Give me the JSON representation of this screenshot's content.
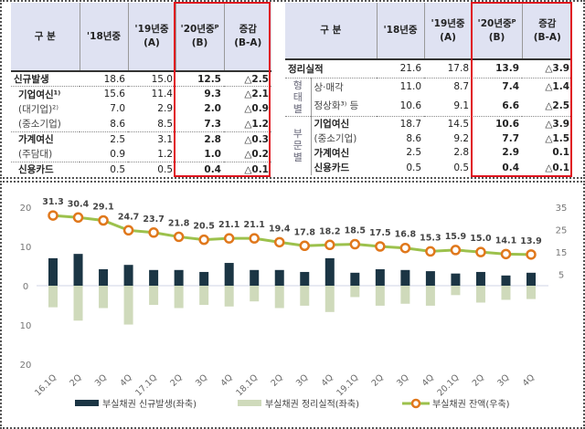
{
  "left_table": {
    "headers": [
      "구    분",
      "'18년중",
      "'19년중\n(A)",
      "'20년중ᴾ\n(B)",
      "증감\n(B-A)"
    ],
    "rows": [
      {
        "label": "신규발생",
        "bold": true,
        "values": [
          "18.6",
          "15.0",
          "12.5",
          "△2.5"
        ]
      },
      {
        "label": "기업여신¹⁾",
        "bold": true,
        "values": [
          "15.6",
          "11.4",
          "9.3",
          "△2.1"
        ]
      },
      {
        "label": "(대기업)²⁾",
        "bold": false,
        "values": [
          "7.0",
          "2.9",
          "2.0",
          "△0.9"
        ]
      },
      {
        "label": "(중소기업)",
        "bold": false,
        "values": [
          "8.6",
          "8.5",
          "7.3",
          "△1.2"
        ]
      },
      {
        "label": "가계여신",
        "bold": true,
        "values": [
          "2.5",
          "3.1",
          "2.8",
          "△0.3"
        ]
      },
      {
        "label": "(주담대)",
        "bold": false,
        "values": [
          "0.9",
          "1.2",
          "1.0",
          "△0.2"
        ]
      },
      {
        "label": "신용카드",
        "bold": true,
        "values": [
          "0.5",
          "0.5",
          "0.4",
          "△0.1"
        ]
      }
    ]
  },
  "right_table": {
    "headers": [
      "구    분",
      "'18년중",
      "'19년중\n(A)",
      "'20년중ᴾ\n(B)",
      "증감\n(B-A)"
    ],
    "group_labels": [
      "형\n태\n별",
      "부\n문\n별"
    ],
    "rows": [
      {
        "label": "정리실적",
        "bold": true,
        "values": [
          "21.6",
          "17.8",
          "13.9",
          "△3.9"
        ]
      },
      {
        "label": "상·매각",
        "bold": false,
        "values": [
          "11.0",
          "8.7",
          "7.4",
          "△1.4"
        ]
      },
      {
        "label": "정상화³⁾ 등",
        "bold": false,
        "values": [
          "10.6",
          "9.1",
          "6.6",
          "△2.5"
        ]
      },
      {
        "label": "기업여신",
        "bold": true,
        "values": [
          "18.7",
          "14.5",
          "10.6",
          "△3.9"
        ]
      },
      {
        "label": "(중소기업)",
        "bold": false,
        "values": [
          "8.6",
          "9.2",
          "7.7",
          "△1.5"
        ]
      },
      {
        "label": "가계여신",
        "bold": true,
        "values": [
          "2.5",
          "2.8",
          "2.9",
          "0.1"
        ]
      },
      {
        "label": "신용카드",
        "bold": true,
        "values": [
          "0.5",
          "0.5",
          "0.4",
          "△0.1"
        ]
      }
    ]
  },
  "chart_data": {
    "type": "bar+line",
    "categories": [
      "16.1Q",
      "2Q",
      "3Q",
      "4Q",
      "17.1Q",
      "2Q",
      "3Q",
      "4Q",
      "18.1Q",
      "2Q",
      "3Q",
      "4Q",
      "19.1Q",
      "2Q",
      "3Q",
      "4Q",
      "20.1Q",
      "2Q",
      "3Q",
      "4Q"
    ],
    "left_axis": {
      "ticks": [
        "20",
        "10",
        "0",
        "10",
        "20"
      ],
      "tick_values": [
        20,
        10,
        0,
        -10,
        -20
      ],
      "range": [
        -20,
        20
      ]
    },
    "right_axis": {
      "ticks": [
        "35",
        "25",
        "15",
        "5"
      ],
      "tick_values": [
        35,
        25,
        15,
        5
      ],
      "range": [
        0,
        35
      ]
    },
    "series": [
      {
        "name": "부실채권 신규발생(좌축)",
        "type": "bar",
        "axis": "left",
        "color": "#1b3544",
        "values": [
          7.0,
          8.1,
          4.2,
          5.3,
          4.0,
          4.0,
          3.5,
          5.8,
          4.0,
          4.0,
          3.5,
          7.0,
          3.3,
          4.2,
          4.0,
          3.7,
          3.1,
          3.5,
          2.6,
          3.3
        ]
      },
      {
        "name": "부실채권 정리실적(좌축)",
        "type": "bar",
        "axis": "left",
        "color": "#cfdabb",
        "values": [
          -5.5,
          -8.9,
          -5.7,
          -9.9,
          -4.9,
          -5.7,
          -4.9,
          -5.3,
          -4.0,
          -5.7,
          -5.1,
          -6.7,
          -2.9,
          -5.1,
          -4.6,
          -5.1,
          -2.4,
          -4.3,
          -3.6,
          -3.4
        ]
      },
      {
        "name": "부실채권 잔액(우축)",
        "type": "line",
        "axis": "right",
        "color": "#9cc14c",
        "marker_color": "#e0781c",
        "values": [
          31.3,
          30.4,
          29.1,
          24.7,
          23.7,
          21.8,
          20.5,
          21.1,
          21.1,
          19.4,
          17.8,
          18.2,
          18.5,
          17.5,
          16.8,
          15.3,
          15.9,
          15.0,
          14.1,
          13.9
        ],
        "labels": [
          "31.3",
          "30.4",
          "29.1",
          "24.7",
          "23.7",
          "21.8",
          "20.5",
          "21.1",
          "21.1",
          "19.4",
          "17.8",
          "18.2",
          "18.5",
          "17.5",
          "16.8",
          "15.3",
          "15.9",
          "15.0",
          "14.1",
          "13.9"
        ]
      }
    ],
    "legend_position": "bottom",
    "grid": false
  }
}
